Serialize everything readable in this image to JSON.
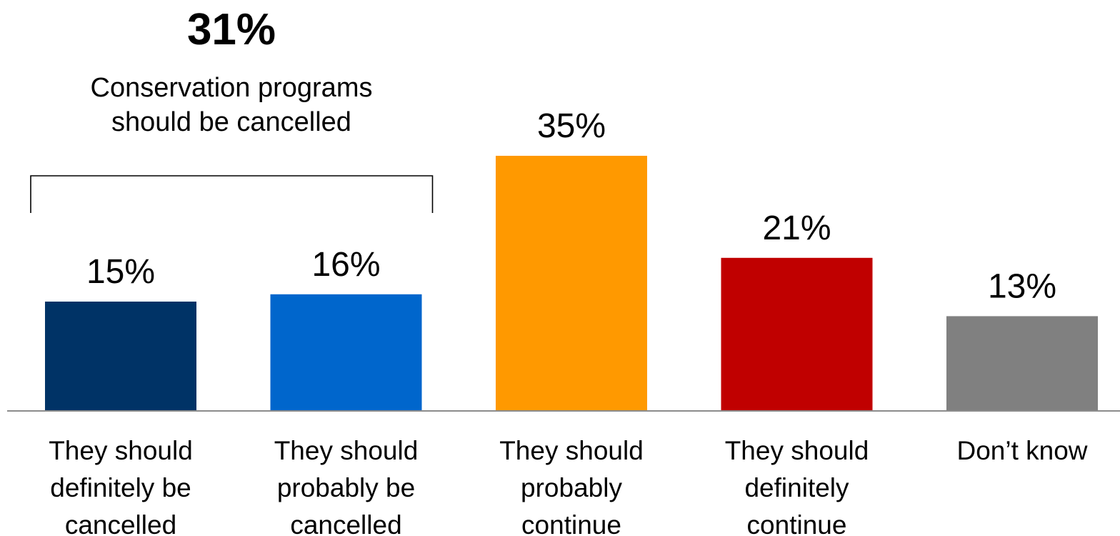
{
  "chart_data": {
    "type": "bar",
    "categories": [
      "They should definitely be cancelled",
      "They should probably be cancelled",
      "They should probably continue",
      "They should definitely continue",
      "Don’t know"
    ],
    "category_lines": [
      [
        "They should",
        "definitely be",
        "cancelled"
      ],
      [
        "They should",
        "probably be",
        "cancelled"
      ],
      [
        "They should",
        "probably",
        "continue"
      ],
      [
        "They should",
        "definitely",
        "continue"
      ],
      [
        "Don’t know"
      ]
    ],
    "values": [
      15,
      16,
      35,
      21,
      13
    ],
    "data_labels": [
      "15%",
      "16%",
      "35%",
      "21%",
      "13%"
    ],
    "colors": [
      "#003366",
      "#0066CC",
      "#FF9900",
      "#C00000",
      "#808080"
    ],
    "ylim": [
      0,
      35
    ],
    "grid": false,
    "legend": "none",
    "title": "",
    "xlabel": "",
    "ylabel": "",
    "annotation": {
      "value_label": "31%",
      "label_lines": [
        "Conservation programs",
        "should be cancelled"
      ],
      "bracket_spans": [
        0,
        1
      ]
    }
  }
}
